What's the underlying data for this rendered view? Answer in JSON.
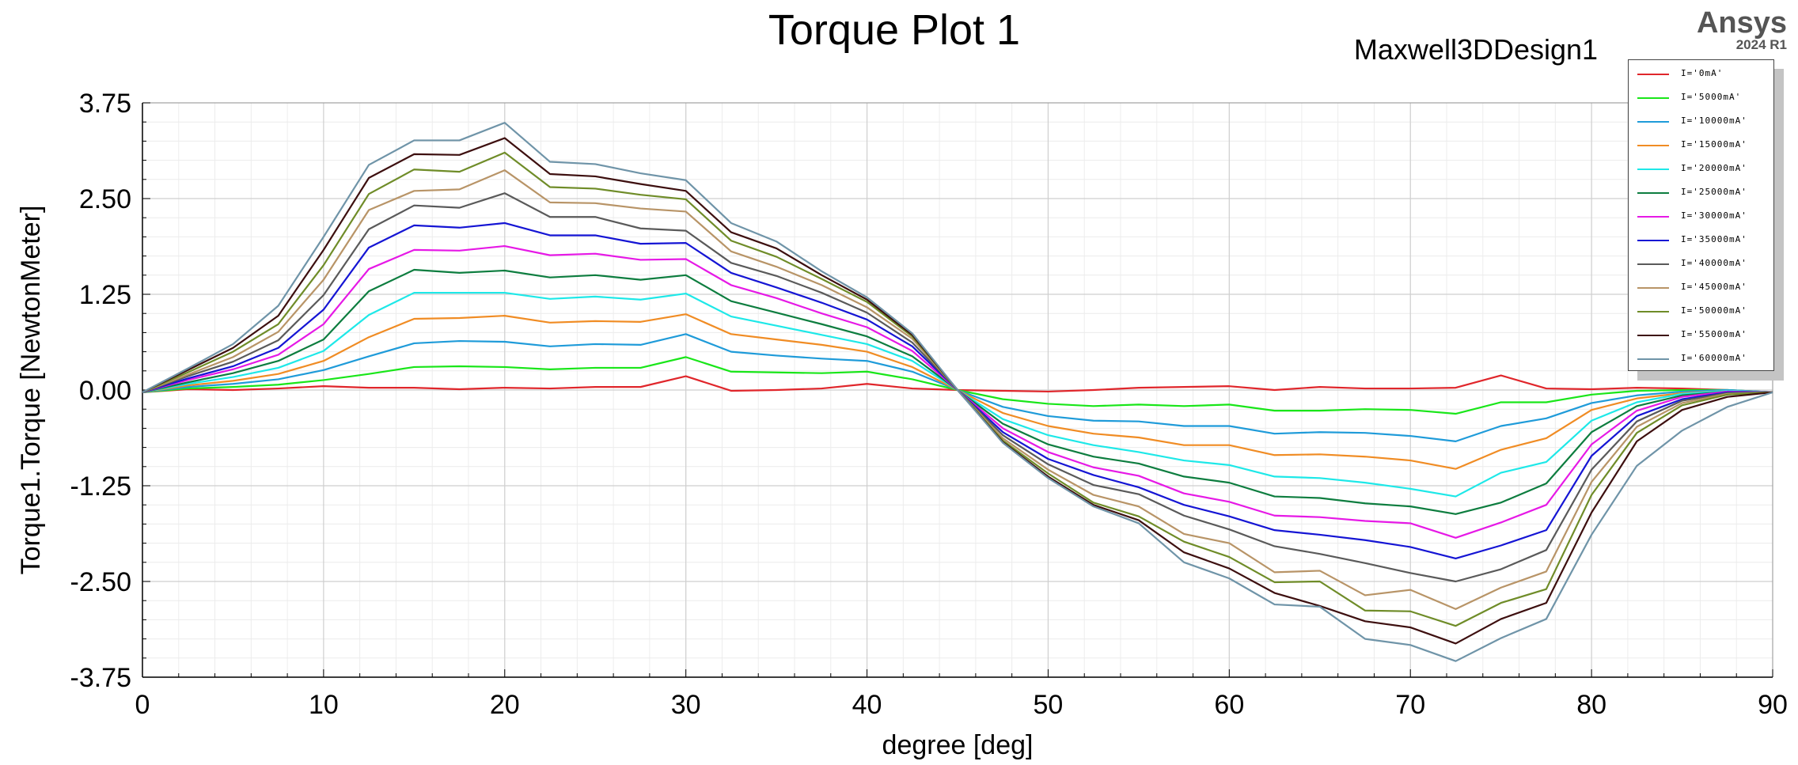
{
  "brand": {
    "name": "Ansys",
    "version": "2024 R1"
  },
  "chart_data": {
    "type": "line",
    "title": "Torque Plot 1",
    "subtitle": "Maxwell3DDesign1",
    "xlabel": "degree [deg]",
    "ylabel": "Torque1.Torque [NewtonMeter]",
    "xlim": [
      0,
      90
    ],
    "ylim": [
      -3.75,
      3.75
    ],
    "xticks": [
      "0",
      "10",
      "20",
      "30",
      "40",
      "50",
      "60",
      "70",
      "80",
      "90"
    ],
    "yticks": [
      "3.75",
      "2.50",
      "1.25",
      "0.00",
      "-1.25",
      "-2.50",
      "-3.75"
    ],
    "grid": true,
    "legend_position": "top-right",
    "x": [
      0,
      2.5,
      5,
      7.5,
      10,
      12.5,
      15,
      17.5,
      20,
      22.5,
      25,
      27.5,
      30,
      32.5,
      35,
      37.5,
      40,
      42.5,
      45,
      47.5,
      50,
      52.5,
      55,
      57.5,
      60,
      62.5,
      65,
      67.5,
      70,
      72.5,
      75,
      77.5,
      80,
      82.5,
      85,
      87.5,
      90
    ],
    "series": [
      {
        "name": "I='0mA'",
        "color": "#e0262b",
        "values": [
          -0.03,
          0.01,
          0.0,
          0.02,
          0.05,
          0.03,
          0.03,
          0.01,
          0.03,
          0.02,
          0.04,
          0.04,
          0.18,
          -0.01,
          0.0,
          0.02,
          0.08,
          0.02,
          0.0,
          -0.01,
          -0.02,
          0.0,
          0.03,
          0.04,
          0.05,
          0.0,
          0.04,
          0.02,
          0.02,
          0.03,
          0.19,
          0.02,
          0.01,
          0.03,
          0.02,
          0.0,
          -0.03
        ]
      },
      {
        "name": "I='5000mA'",
        "color": "#19e619",
        "values": [
          -0.03,
          0.02,
          0.04,
          0.07,
          0.13,
          0.21,
          0.3,
          0.31,
          0.3,
          0.27,
          0.29,
          0.29,
          0.43,
          0.24,
          0.23,
          0.22,
          0.24,
          0.14,
          0.0,
          -0.12,
          -0.18,
          -0.21,
          -0.19,
          -0.21,
          -0.19,
          -0.27,
          -0.27,
          -0.25,
          -0.26,
          -0.31,
          -0.16,
          -0.16,
          -0.06,
          -0.01,
          0.0,
          0.0,
          -0.03
        ]
      },
      {
        "name": "I='10000mA'",
        "color": "#1f9bd9",
        "values": [
          -0.03,
          0.04,
          0.08,
          0.14,
          0.26,
          0.44,
          0.61,
          0.64,
          0.63,
          0.57,
          0.6,
          0.59,
          0.73,
          0.5,
          0.45,
          0.41,
          0.38,
          0.24,
          0.0,
          -0.22,
          -0.34,
          -0.4,
          -0.41,
          -0.47,
          -0.47,
          -0.57,
          -0.55,
          -0.56,
          -0.6,
          -0.67,
          -0.47,
          -0.37,
          -0.17,
          -0.07,
          -0.02,
          0.0,
          -0.03
        ]
      },
      {
        "name": "I='15000mA'",
        "color": "#f08c24",
        "values": [
          -0.03,
          0.06,
          0.12,
          0.21,
          0.38,
          0.69,
          0.93,
          0.94,
          0.97,
          0.88,
          0.9,
          0.89,
          0.99,
          0.73,
          0.66,
          0.59,
          0.5,
          0.3,
          0.0,
          -0.3,
          -0.47,
          -0.57,
          -0.62,
          -0.72,
          -0.72,
          -0.85,
          -0.84,
          -0.87,
          -0.92,
          -1.03,
          -0.78,
          -0.63,
          -0.26,
          -0.11,
          -0.04,
          -0.01,
          -0.03
        ]
      },
      {
        "name": "I='20000mA'",
        "color": "#1ee8e8",
        "values": [
          -0.03,
          0.08,
          0.17,
          0.29,
          0.51,
          0.98,
          1.27,
          1.27,
          1.27,
          1.19,
          1.22,
          1.18,
          1.26,
          0.96,
          0.84,
          0.72,
          0.6,
          0.38,
          0.0,
          -0.38,
          -0.59,
          -0.72,
          -0.81,
          -0.92,
          -0.98,
          -1.13,
          -1.15,
          -1.21,
          -1.29,
          -1.39,
          -1.08,
          -0.94,
          -0.4,
          -0.16,
          -0.05,
          -0.01,
          -0.03
        ]
      },
      {
        "name": "I='25000mA'",
        "color": "#0d7d3f",
        "values": [
          -0.03,
          0.1,
          0.22,
          0.38,
          0.66,
          1.29,
          1.57,
          1.53,
          1.56,
          1.47,
          1.5,
          1.44,
          1.5,
          1.16,
          1.01,
          0.86,
          0.7,
          0.44,
          0.0,
          -0.44,
          -0.71,
          -0.87,
          -0.96,
          -1.13,
          -1.21,
          -1.39,
          -1.41,
          -1.48,
          -1.52,
          -1.62,
          -1.47,
          -1.22,
          -0.55,
          -0.21,
          -0.07,
          -0.02,
          -0.03
        ]
      },
      {
        "name": "I='30000mA'",
        "color": "#e619e6",
        "values": [
          -0.03,
          0.13,
          0.27,
          0.46,
          0.86,
          1.58,
          1.83,
          1.82,
          1.88,
          1.76,
          1.78,
          1.7,
          1.71,
          1.37,
          1.2,
          1.0,
          0.82,
          0.51,
          0.0,
          -0.5,
          -0.81,
          -1.01,
          -1.12,
          -1.35,
          -1.46,
          -1.64,
          -1.66,
          -1.71,
          -1.74,
          -1.93,
          -1.73,
          -1.5,
          -0.71,
          -0.27,
          -0.09,
          -0.02,
          -0.03
        ]
      },
      {
        "name": "I='35000mA'",
        "color": "#1515d4",
        "values": [
          -0.03,
          0.15,
          0.31,
          0.55,
          1.05,
          1.86,
          2.15,
          2.12,
          2.18,
          2.02,
          2.02,
          1.91,
          1.92,
          1.53,
          1.34,
          1.14,
          0.92,
          0.57,
          0.0,
          -0.55,
          -0.9,
          -1.11,
          -1.27,
          -1.5,
          -1.65,
          -1.83,
          -1.89,
          -1.96,
          -2.05,
          -2.2,
          -2.03,
          -1.83,
          -0.86,
          -0.34,
          -0.12,
          -0.03,
          -0.03
        ]
      },
      {
        "name": "I='40000mA'",
        "color": "#5a5a5a",
        "values": [
          -0.03,
          0.18,
          0.37,
          0.65,
          1.24,
          2.1,
          2.41,
          2.38,
          2.57,
          2.26,
          2.26,
          2.11,
          2.08,
          1.66,
          1.49,
          1.27,
          1.01,
          0.62,
          0.0,
          -0.59,
          -0.97,
          -1.24,
          -1.36,
          -1.64,
          -1.82,
          -2.04,
          -2.14,
          -2.26,
          -2.39,
          -2.5,
          -2.34,
          -2.09,
          -1.04,
          -0.41,
          -0.14,
          -0.04,
          -0.03
        ]
      },
      {
        "name": "I='45000mA'",
        "color": "#b89467",
        "values": [
          -0.03,
          0.2,
          0.43,
          0.76,
          1.44,
          2.35,
          2.6,
          2.62,
          2.87,
          2.45,
          2.44,
          2.37,
          2.33,
          1.81,
          1.61,
          1.37,
          1.08,
          0.67,
          0.0,
          -0.63,
          -1.04,
          -1.37,
          -1.52,
          -1.88,
          -2.0,
          -2.38,
          -2.36,
          -2.68,
          -2.61,
          -2.86,
          -2.58,
          -2.37,
          -1.2,
          -0.48,
          -0.17,
          -0.05,
          -0.03
        ]
      },
      {
        "name": "I='50000mA'",
        "color": "#6f8c28",
        "values": [
          -0.03,
          0.23,
          0.5,
          0.86,
          1.63,
          2.56,
          2.88,
          2.85,
          3.1,
          2.65,
          2.63,
          2.55,
          2.49,
          1.95,
          1.74,
          1.45,
          1.15,
          0.7,
          0.0,
          -0.66,
          -1.09,
          -1.47,
          -1.65,
          -1.98,
          -2.18,
          -2.51,
          -2.5,
          -2.88,
          -2.89,
          -3.08,
          -2.78,
          -2.6,
          -1.37,
          -0.56,
          -0.2,
          -0.06,
          -0.03
        ]
      },
      {
        "name": "I='55000mA'",
        "color": "#3d0f0f",
        "values": [
          -0.03,
          0.26,
          0.55,
          0.97,
          1.83,
          2.77,
          3.08,
          3.07,
          3.29,
          2.82,
          2.79,
          2.69,
          2.6,
          2.06,
          1.85,
          1.5,
          1.18,
          0.72,
          0.0,
          -0.68,
          -1.13,
          -1.5,
          -1.7,
          -2.12,
          -2.33,
          -2.65,
          -2.82,
          -3.02,
          -3.1,
          -3.31,
          -2.99,
          -2.78,
          -1.6,
          -0.67,
          -0.26,
          -0.09,
          -0.03
        ]
      },
      {
        "name": "I='60000mA'",
        "color": "#6f94a8",
        "values": [
          -0.03,
          0.28,
          0.6,
          1.1,
          2.0,
          2.94,
          3.26,
          3.26,
          3.49,
          2.98,
          2.95,
          2.83,
          2.74,
          2.18,
          1.94,
          1.55,
          1.21,
          0.74,
          0.0,
          -0.69,
          -1.15,
          -1.52,
          -1.74,
          -2.25,
          -2.46,
          -2.8,
          -2.83,
          -3.25,
          -3.33,
          -3.54,
          -3.24,
          -2.99,
          -1.89,
          -0.99,
          -0.53,
          -0.22,
          -0.03
        ]
      }
    ]
  }
}
